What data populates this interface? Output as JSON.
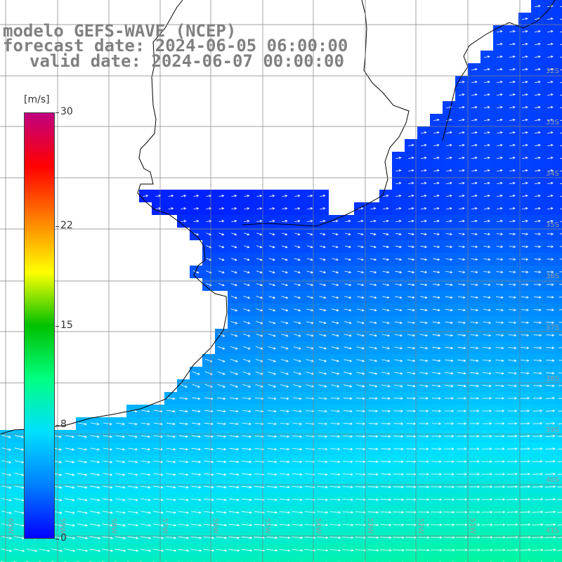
{
  "title": {
    "line1": "modelo GEFS-WAVE (NCEP)",
    "line2": "forecast date: 2024-06-05 06:00:00",
    "line3": "valid date: 2024-06-07 00:00:00"
  },
  "colorbar": {
    "unit": "[m/s]",
    "ticks": [
      {
        "label": "30",
        "value": 30
      },
      {
        "label": "22",
        "value": 22
      },
      {
        "label": "15",
        "value": 15
      },
      {
        "label": "8",
        "value": 8
      },
      {
        "label": "0",
        "value": 0
      }
    ],
    "min": 0,
    "max": 30,
    "stops": [
      "#0000ff",
      "#0080ff",
      "#00e0ff",
      "#00ff80",
      "#00c000",
      "#ffff00",
      "#ff8000",
      "#ff0000",
      "#c00080"
    ]
  },
  "map": {
    "lat_labels": [
      "32S",
      "33S",
      "34S",
      "35S",
      "36S",
      "37S",
      "38S",
      "39S",
      "40S",
      "41S"
    ],
    "lon_labels": [
      "60W",
      "59W",
      "58W",
      "57W",
      "56W",
      "55W",
      "54W",
      "53W",
      "52W",
      "51W"
    ],
    "land_color": "#ffffff",
    "grid_color": "#808080",
    "arrow_color": "#ffffff"
  }
}
